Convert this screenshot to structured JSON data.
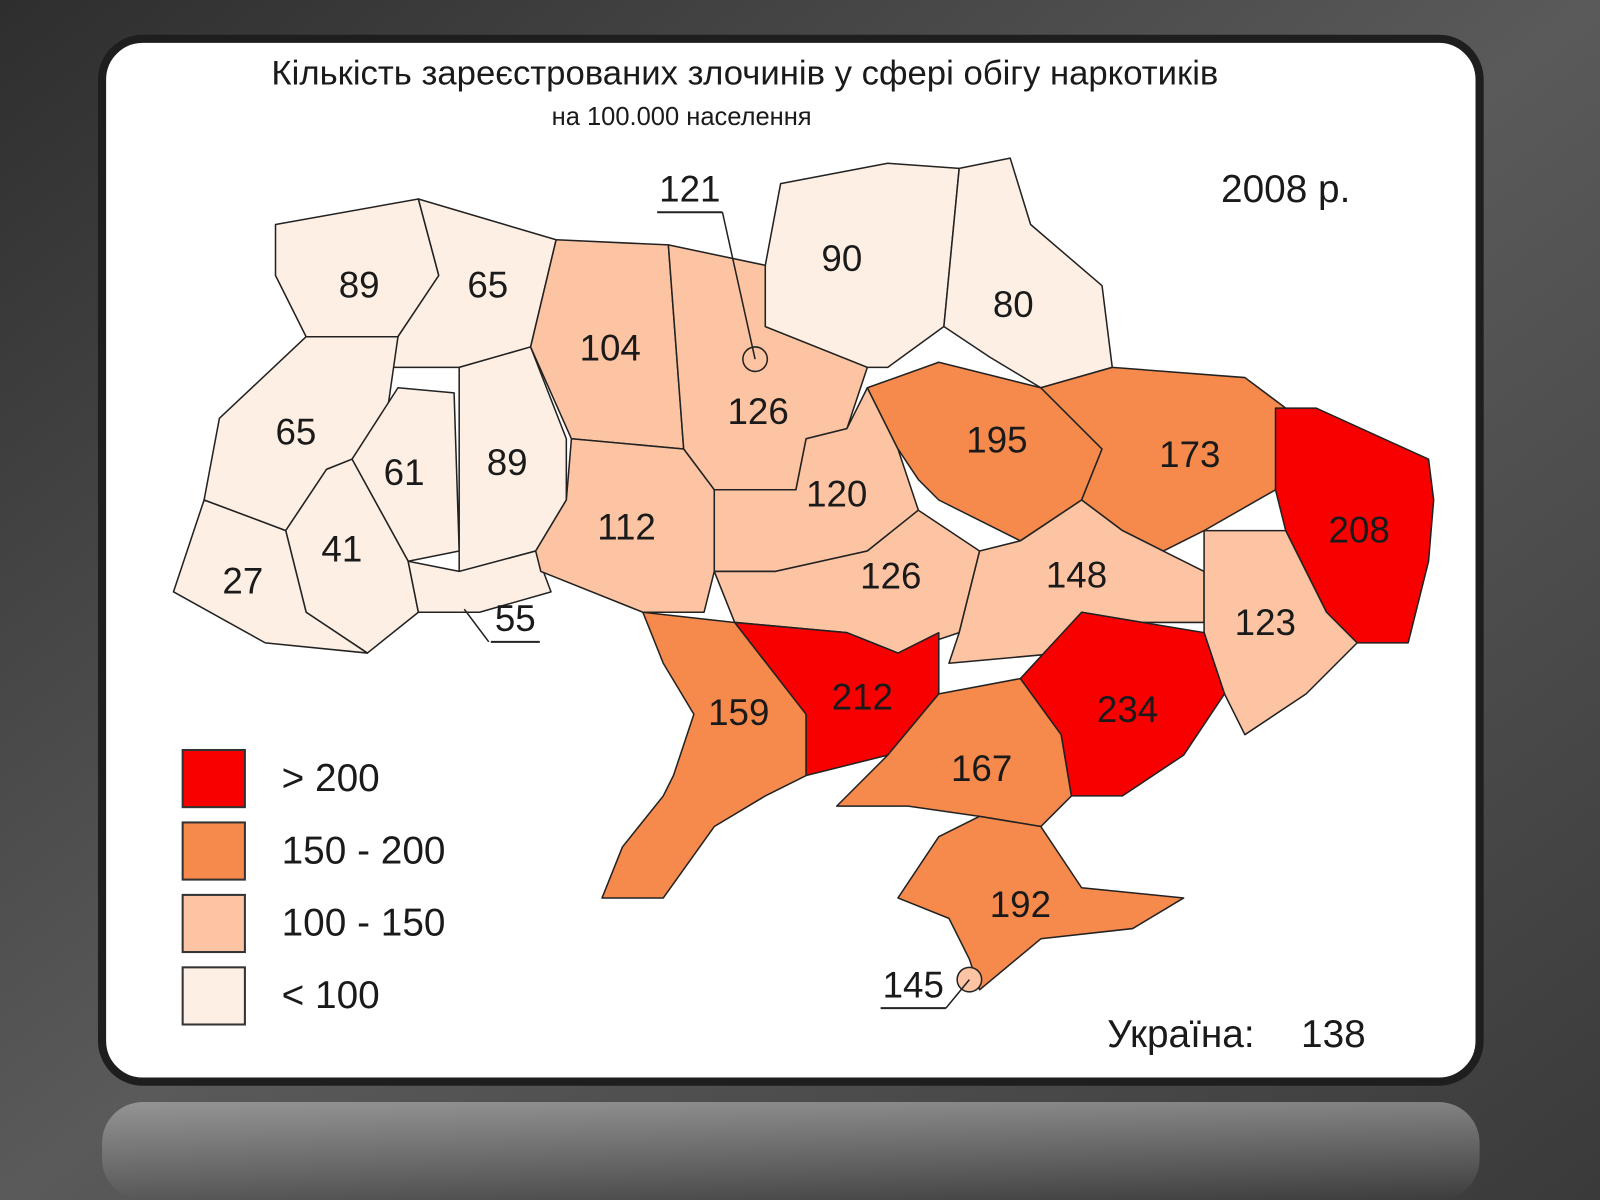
{
  "title": "Кількість зареєстрованих злочинів у сфері обігу наркотиків",
  "subtitle": "на 100.000 населення",
  "year": "2008 р.",
  "legend": [
    {
      "label": "> 200",
      "color": "#f80000"
    },
    {
      "label": "150 - 200",
      "color": "#f58a4c"
    },
    {
      "label": "100 - 150",
      "color": "#fcc4a3"
    },
    {
      "label": "< 100",
      "color": "#fdefe3"
    }
  ],
  "regions": [
    {
      "value": 89,
      "color": "#fdefe3"
    },
    {
      "value": 65,
      "color": "#fdefe3"
    },
    {
      "value": 65,
      "color": "#fdefe3"
    },
    {
      "value": 61,
      "color": "#fdefe3"
    },
    {
      "value": 89,
      "color": "#fdefe3"
    },
    {
      "value": 41,
      "color": "#fdefe3"
    },
    {
      "value": 27,
      "color": "#fdefe3"
    },
    {
      "value": 55,
      "color": "#fdefe3"
    },
    {
      "value": 104,
      "color": "#fcc4a3"
    },
    {
      "value": 126,
      "color": "#fcc4a3"
    },
    {
      "value": 121,
      "color": "#fcc4a3"
    },
    {
      "value": 90,
      "color": "#fdefe3"
    },
    {
      "value": 80,
      "color": "#fdefe3"
    },
    {
      "value": 112,
      "color": "#fcc4a3"
    },
    {
      "value": 120,
      "color": "#fcc4a3"
    },
    {
      "value": 195,
      "color": "#f58a4c"
    },
    {
      "value": 173,
      "color": "#f58a4c"
    },
    {
      "value": 208,
      "color": "#f80000"
    },
    {
      "value": 126,
      "color": "#fcc4a3"
    },
    {
      "value": 148,
      "color": "#fcc4a3"
    },
    {
      "value": 123,
      "color": "#fcc4a3"
    },
    {
      "value": 159,
      "color": "#f58a4c"
    },
    {
      "value": 212,
      "color": "#f80000"
    },
    {
      "value": 167,
      "color": "#f58a4c"
    },
    {
      "value": 234,
      "color": "#f80000"
    },
    {
      "value": 192,
      "color": "#f58a4c"
    },
    {
      "value": 145,
      "color": "#fcc4a3"
    }
  ],
  "total": {
    "label": "Україна:",
    "value": 138
  }
}
